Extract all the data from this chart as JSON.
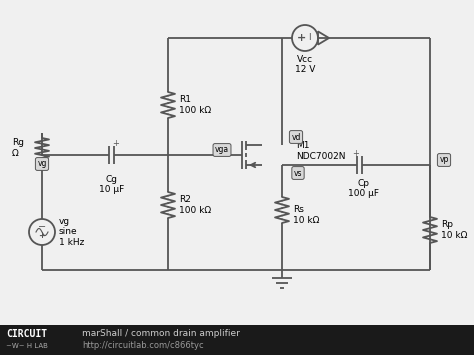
{
  "bg_color": "#f0f0f0",
  "circuit_bg": "#f0f0f0",
  "line_color": "#555555",
  "footer_bg": "#1a1a1a",
  "title_text": "marShall / common drain amplifier",
  "url_text": "http://circuitlab.com/c866tyc",
  "R1_label": "R1\n100 kΩ",
  "R2_label": "R2\n100 kΩ",
  "Rs_label": "Rs\n10 kΩ",
  "Rg_label": "Rg\nΩ",
  "Rp_label": "Rp\n10 kΩ",
  "Cg_label": "Cg\n10 μF",
  "Cp_label": "Cp\n100 μF",
  "M1_label": "M1\nNDC7002N",
  "Vcc_label": "Vcc\n12 V",
  "vg_label": "vg\nsine\n1 kHz",
  "vga_label": "vga",
  "vd_label": "vd",
  "vs_label": "vs",
  "vp_label": "vp"
}
